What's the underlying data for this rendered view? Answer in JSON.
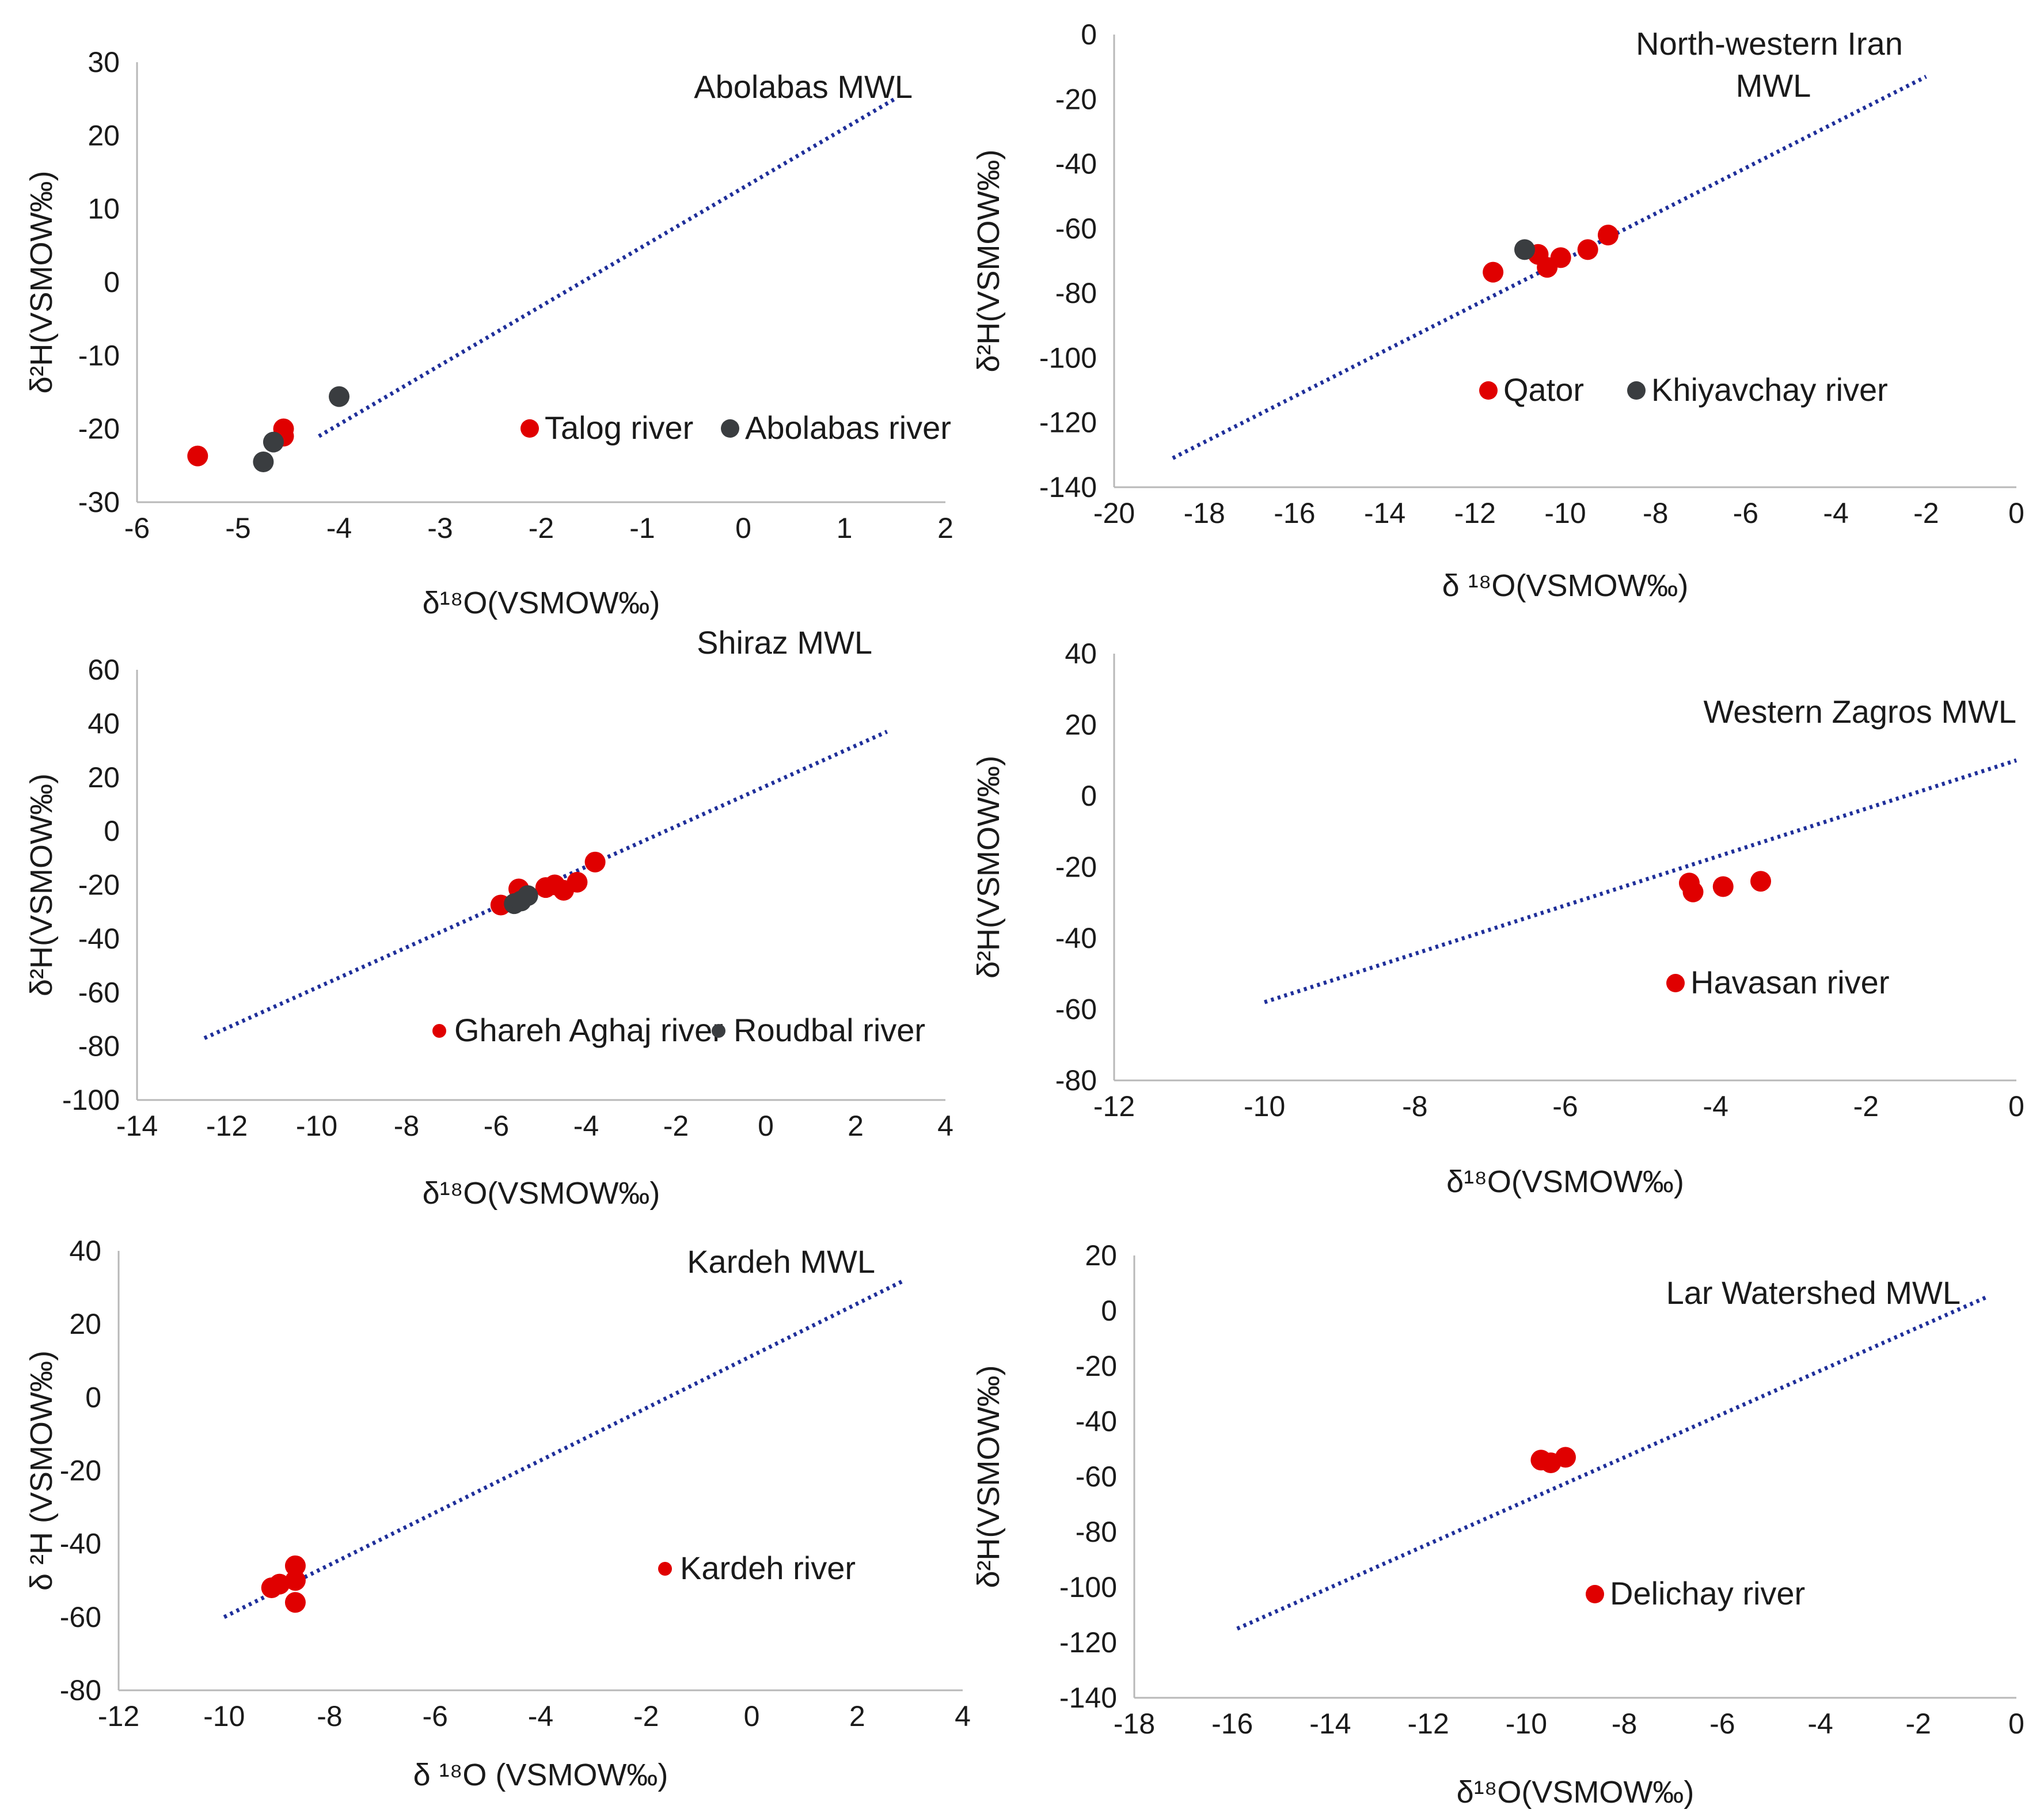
{
  "colors": {
    "red": "#e00000",
    "grey": "#3a3d40",
    "mwl": "#1f2f9a",
    "axis": "#b8b8b8"
  },
  "chart_data": [
    {
      "type": "scatter",
      "title": "Abolabas  MWL",
      "xlabel": "δ¹⁸O(VSMOW‰)",
      "ylabel": "δ²H(VSMOW‰)",
      "xlim": [
        -6,
        2
      ],
      "ylim": [
        -30,
        30
      ],
      "xticks": [
        -6,
        -5,
        -4,
        -3,
        -2,
        -1,
        0,
        1,
        2
      ],
      "yticks": [
        -30,
        -20,
        -10,
        0,
        10,
        20,
        30
      ],
      "mwl": {
        "x": [
          -4.2,
          1.5
        ],
        "y": [
          -21,
          25
        ]
      },
      "series": [
        {
          "name": "Talog river",
          "color": "red",
          "points": [
            [
              -5.4,
              -23.7
            ],
            [
              -4.55,
              -20.0
            ],
            [
              -4.55,
              -21.0
            ]
          ]
        },
        {
          "name": "Abolabas river",
          "color": "grey",
          "points": [
            [
              -4.0,
              -15.6
            ],
            [
              -4.65,
              -21.8
            ],
            [
              -4.75,
              -24.5
            ]
          ]
        }
      ]
    },
    {
      "type": "scatter",
      "title": "North-western Iran MWL",
      "title_lines": [
        "North-western Iran",
        "MWL"
      ],
      "xlabel": "δ ¹⁸O(VSMOW‰)",
      "ylabel": "δ²H(VSMOW‰)",
      "xlim": [
        -20,
        0
      ],
      "ylim": [
        -140,
        0
      ],
      "xticks": [
        -20,
        -18,
        -16,
        -14,
        -12,
        -10,
        -8,
        -6,
        -4,
        -2,
        0
      ],
      "yticks": [
        -140,
        -120,
        -100,
        -80,
        -60,
        -40,
        -20,
        0
      ],
      "mwl": {
        "x": [
          -18.7,
          -2
        ],
        "y": [
          -131,
          -13
        ]
      },
      "series": [
        {
          "name": "Qator",
          "color": "red",
          "points": [
            [
              -11.6,
              -73.5
            ],
            [
              -10.6,
              -68.0
            ],
            [
              -10.4,
              -72.0
            ],
            [
              -10.1,
              -69.0
            ],
            [
              -9.5,
              -66.5
            ],
            [
              -9.05,
              -62.0
            ]
          ]
        },
        {
          "name": "Khiyavchay river",
          "color": "grey",
          "points": [
            [
              -10.9,
              -66.5
            ]
          ]
        }
      ]
    },
    {
      "type": "scatter",
      "title": "Shiraz MWL",
      "xlabel": "δ¹⁸O(VSMOW‰)",
      "ylabel": "δ²H(VSMOW‰)",
      "xlim": [
        -14,
        4
      ],
      "ylim": [
        -100,
        60
      ],
      "xticks": [
        -14,
        -12,
        -10,
        -8,
        -6,
        -4,
        -2,
        0,
        2,
        4
      ],
      "yticks": [
        -100,
        -80,
        -60,
        -40,
        -20,
        0,
        20,
        40,
        60
      ],
      "mwl": {
        "x": [
          -12.5,
          2.7
        ],
        "y": [
          -77,
          37
        ]
      },
      "series": [
        {
          "name": "Ghareh Aghaj river",
          "color": "red",
          "points": [
            [
              -5.9,
              -27.5
            ],
            [
              -5.5,
              -21.5
            ],
            [
              -4.9,
              -21.0
            ],
            [
              -4.7,
              -20.0
            ],
            [
              -4.5,
              -22.0
            ],
            [
              -4.2,
              -19.0
            ],
            [
              -3.8,
              -11.5
            ]
          ]
        },
        {
          "name": "Roudbal river",
          "color": "grey",
          "points": [
            [
              -5.6,
              -27.0
            ],
            [
              -5.45,
              -26.0
            ],
            [
              -5.3,
              -24.0
            ]
          ]
        }
      ]
    },
    {
      "type": "scatter",
      "title": "Western Zagros MWL",
      "xlabel": "δ¹⁸O(VSMOW‰)",
      "ylabel": "δ²H(VSMOW‰)",
      "xlim": [
        -12,
        0
      ],
      "ylim": [
        -80,
        40
      ],
      "xticks": [
        -12,
        -10,
        -8,
        -6,
        -4,
        -2,
        0
      ],
      "yticks": [
        -80,
        -60,
        -40,
        -20,
        0,
        20,
        40
      ],
      "mwl": {
        "x": [
          -10,
          0
        ],
        "y": [
          -58,
          10
        ]
      },
      "series": [
        {
          "name": "Havasan river",
          "color": "red",
          "points": [
            [
              -4.35,
              -24.5
            ],
            [
              -4.3,
              -27.0
            ],
            [
              -3.9,
              -25.5
            ],
            [
              -3.4,
              -24.0
            ]
          ]
        }
      ]
    },
    {
      "type": "scatter",
      "title": "Kardeh MWL",
      "xlabel": "δ ¹⁸O (VSMOW‰)",
      "ylabel": "δ ²H (VSMOW‰)",
      "xlim": [
        -12,
        4
      ],
      "ylim": [
        -80,
        40
      ],
      "xticks": [
        -12,
        -10,
        -8,
        -6,
        -4,
        -2,
        0,
        2,
        4
      ],
      "yticks": [
        -80,
        -60,
        -40,
        -20,
        0,
        20,
        40
      ],
      "mwl": {
        "x": [
          -10,
          2.9
        ],
        "y": [
          -60,
          32
        ]
      },
      "series": [
        {
          "name": "Kardeh river",
          "color": "red",
          "points": [
            [
              -9.1,
              -52.0
            ],
            [
              -8.95,
              -51.0
            ],
            [
              -8.65,
              -46.0
            ],
            [
              -8.65,
              -50.0
            ],
            [
              -8.65,
              -56.0
            ]
          ]
        }
      ]
    },
    {
      "type": "scatter",
      "title": "Lar Watershed MWL",
      "xlabel": "δ¹⁸O(VSMOW‰)",
      "ylabel": "δ²H(VSMOW‰)",
      "xlim": [
        -18,
        0
      ],
      "ylim": [
        -140,
        20
      ],
      "xticks": [
        -18,
        -16,
        -14,
        -12,
        -10,
        -8,
        -6,
        -4,
        -2,
        0
      ],
      "yticks": [
        -140,
        -120,
        -100,
        -80,
        -60,
        -40,
        -20,
        0,
        20
      ],
      "mwl": {
        "x": [
          -15.9,
          -0.6
        ],
        "y": [
          -115,
          5
        ]
      },
      "series": [
        {
          "name": "Delichay river",
          "color": "red",
          "points": [
            [
              -9.7,
              -54.0
            ],
            [
              -9.5,
              -55.0
            ],
            [
              -9.2,
              -53.0
            ]
          ]
        }
      ]
    }
  ]
}
